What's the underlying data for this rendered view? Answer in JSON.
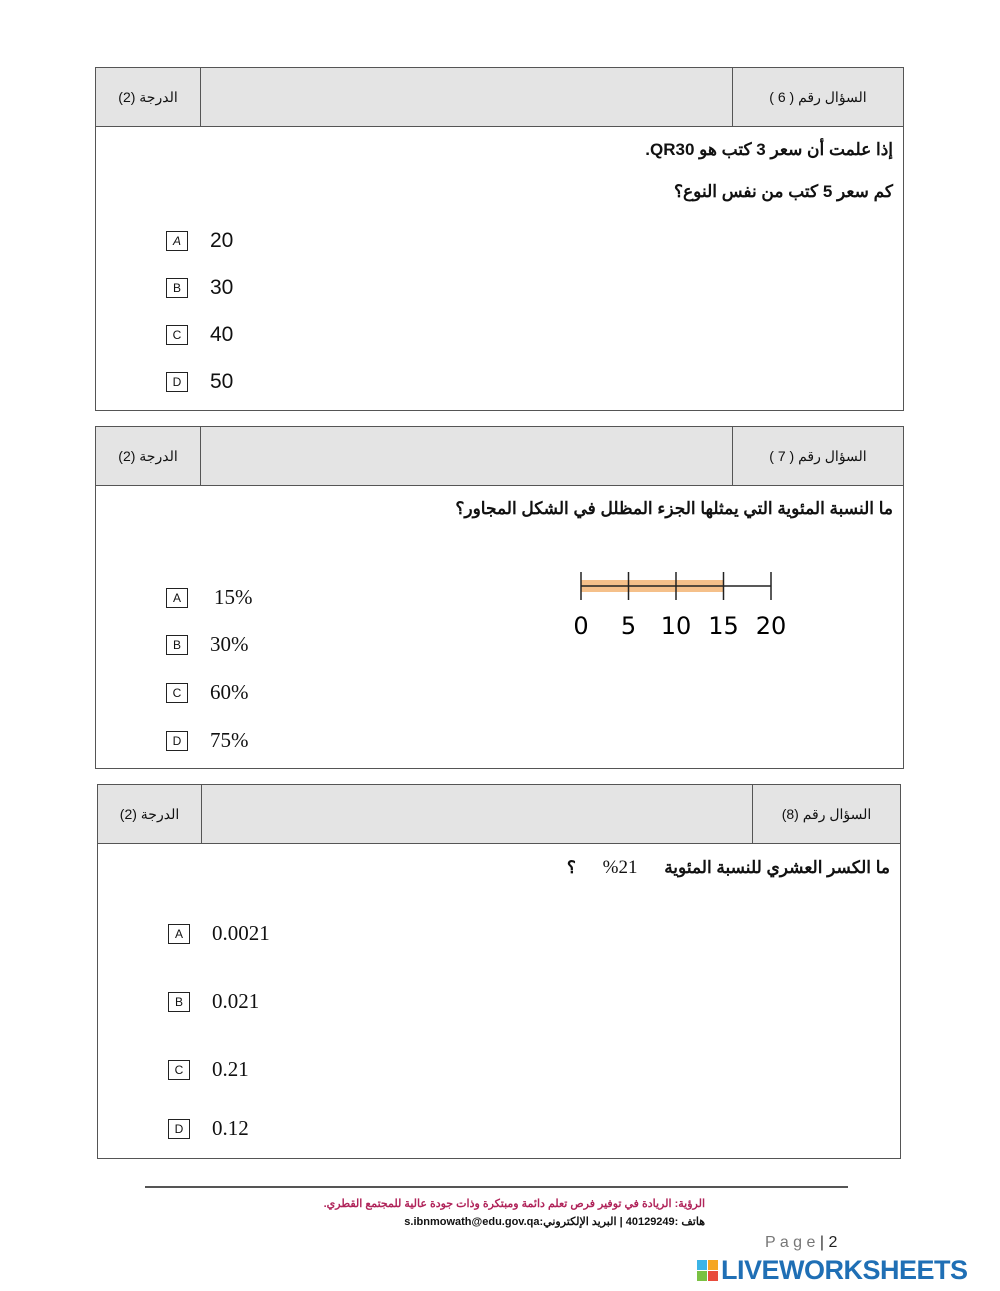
{
  "questions": [
    {
      "grade": "الدرجة (2)",
      "number": "السؤال رقم ( 6 )",
      "lines": [
        "إذا علمت أن سعر 3 كتب هو QR30.",
        "كم سعر 5 كتب من نفس النوع؟"
      ],
      "options": [
        {
          "letter": "A",
          "value": "20"
        },
        {
          "letter": "B",
          "value": "30"
        },
        {
          "letter": "C",
          "value": "40"
        },
        {
          "letter": "D",
          "value": "50"
        }
      ]
    },
    {
      "grade": "الدرجة (2)",
      "number": "السؤال رقم ( 7 )",
      "lines": [
        "ما النسبة المئوية التي يمثلها الجزء المظلل في الشكل المجاور؟"
      ],
      "options": [
        {
          "letter": "A",
          "value": "15%"
        },
        {
          "letter": "B",
          "value": "30%"
        },
        {
          "letter": "C",
          "value": "60%"
        },
        {
          "letter": "D",
          "value": "75%"
        }
      ],
      "number_line": {
        "ticks": [
          "0",
          "5",
          "10",
          "15",
          "20"
        ],
        "shaded_to": 15,
        "max": 20,
        "shade_color": "#f5c08a"
      }
    },
    {
      "grade": "الدرجة (2)",
      "number": "السؤال رقم (8)",
      "lines": [
        "ما الكسر العشري للنسبة المئوية",
        "21%",
        "؟"
      ],
      "options": [
        {
          "letter": "A",
          "value": "0.0021"
        },
        {
          "letter": "B",
          "value": "0.021"
        },
        {
          "letter": "C",
          "value": "0.21"
        },
        {
          "letter": "D",
          "value": "0.12"
        }
      ]
    }
  ],
  "footer": {
    "vision": "الرؤية: الريادة في توفير فرص تعلم دائمة ومبتكرة وذات جودة عالية للمجتمع القطري.",
    "contact": "هاتف :40129249 | البريد الإلكتروني:s.ibnmowath@edu.gov.qa",
    "page_label": "P a g e",
    "page_number": "2",
    "brand": "LIVEWORKSHEETS"
  }
}
